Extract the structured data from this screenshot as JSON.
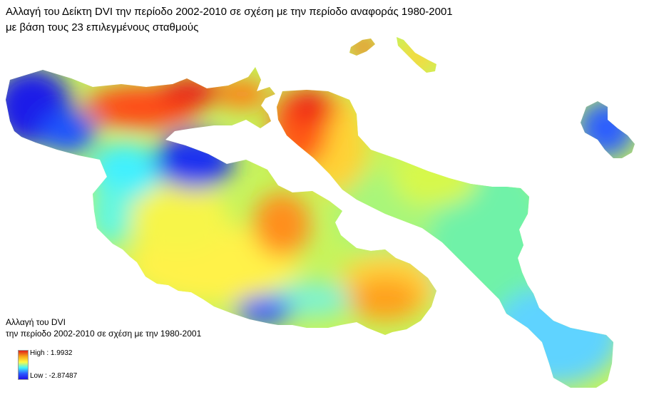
{
  "title": {
    "line1": "Αλλαγή του Δείκτη  DVI την περίοδο 2002-2010 σε σχέση με την περίοδο αναφοράς 1980-2001",
    "line2": "με βάση τους 23 επιλεγμένους σταθμούς"
  },
  "legend": {
    "title": "Αλλαγή του DVI",
    "subtitle": "την περίοδο 2002-2010 σε σχέση με την 1980-2001",
    "high_label": "High : 1.9932",
    "low_label": "Low : -2.87487",
    "high_value": 1.9932,
    "low_value": -2.87487,
    "ramp_colors": [
      "#e0201b",
      "#f7a416",
      "#fffb45",
      "#3ff3ff",
      "#2b5bff",
      "#1f12e6"
    ]
  }
}
